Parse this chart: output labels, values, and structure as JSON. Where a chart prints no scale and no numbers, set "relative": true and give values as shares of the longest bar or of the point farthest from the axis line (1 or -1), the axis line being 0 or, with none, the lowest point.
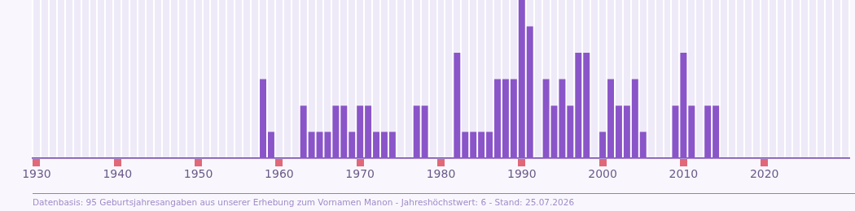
{
  "chart_data": {
    "type": "bar",
    "relative": true,
    "color": "#8a55c8",
    "grid": "x",
    "categories": [
      "1930",
      null,
      null,
      null,
      null,
      null,
      null,
      null,
      null,
      null,
      "1940",
      null,
      null,
      null,
      null,
      null,
      null,
      null,
      null,
      null,
      "1950",
      null,
      null,
      null,
      null,
      null,
      null,
      null,
      null,
      null,
      "1960",
      null,
      null,
      null,
      null,
      null,
      null,
      null,
      null,
      null,
      "1970",
      null,
      null,
      null,
      null,
      null,
      null,
      null,
      null,
      null,
      "1980",
      null,
      null,
      null,
      null,
      null,
      null,
      null,
      null,
      null,
      "1990",
      null,
      null,
      null,
      null,
      null,
      null,
      null,
      null,
      null,
      "2000",
      null,
      null,
      null,
      null,
      null,
      null,
      null,
      null,
      null,
      "2010",
      null,
      null,
      null,
      null,
      null,
      null,
      null,
      null,
      null,
      "2020",
      null,
      null,
      null,
      null,
      null,
      null,
      null,
      null,
      null,
      null
    ],
    "values": [
      null,
      null,
      null,
      null,
      null,
      null,
      null,
      null,
      null,
      null,
      null,
      null,
      null,
      null,
      null,
      null,
      null,
      null,
      null,
      null,
      null,
      null,
      null,
      null,
      null,
      null,
      null,
      null,
      0.5,
      0.167,
      null,
      null,
      null,
      0.333,
      0.167,
      0.167,
      0.167,
      0.333,
      0.333,
      0.167,
      0.333,
      0.333,
      0.167,
      0.167,
      0.167,
      null,
      null,
      0.333,
      0.333,
      null,
      null,
      null,
      0.667,
      0.167,
      0.167,
      0.167,
      0.167,
      0.5,
      0.5,
      0.5,
      1,
      0.833,
      null,
      0.5,
      0.333,
      0.5,
      0.333,
      0.667,
      0.667,
      null,
      0.167,
      0.5,
      0.333,
      0.333,
      0.5,
      0.167,
      null,
      null,
      null,
      0.333,
      0.667,
      0.333,
      null,
      0.333,
      0.333,
      null,
      null,
      null,
      null,
      null,
      null,
      null,
      null,
      null,
      null,
      null,
      null,
      null,
      null,
      null,
      null
    ],
    "annotations": [
      "Datenbasis: 95 Geburtsjahresangaben aus unserer Erhebung zum Vornamen Manon - Jahreshöchstwert: 6 - Stand: 25.07.2026"
    ]
  }
}
